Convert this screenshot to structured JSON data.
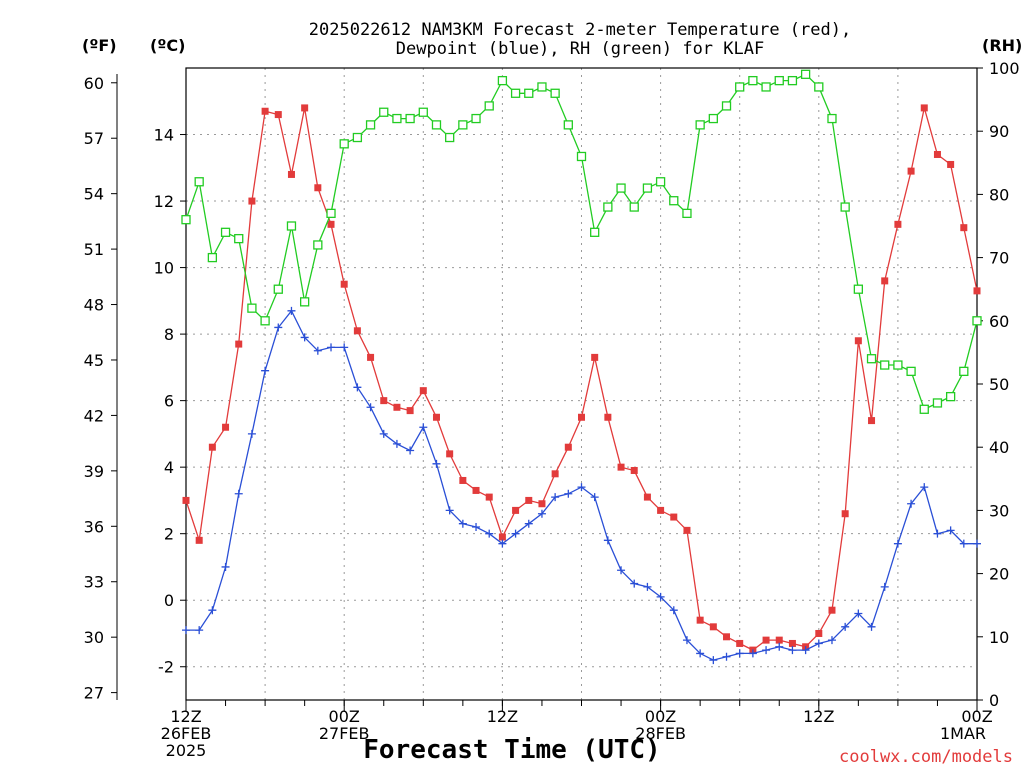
{
  "chart_data": {
    "type": "line",
    "title": [
      "2025022612 NAM3KM Forecast 2-meter Temperature (red),",
      "Dewpoint (blue), RH (green) for KLAF"
    ],
    "xlabel": "Forecast Time (UTC)",
    "credit": "coolwx.com/models",
    "units": {
      "left_f": "(ºF)",
      "left_c": "(ºC)",
      "right": "(RH)"
    },
    "x_range_hours": [
      0,
      60
    ],
    "y_c_range": [
      -3,
      16
    ],
    "y_f_range": [
      26.6,
      60.8
    ],
    "rh_range": [
      0,
      100
    ],
    "grid": true,
    "c_ticks": [
      -2,
      0,
      2,
      4,
      6,
      8,
      10,
      12,
      14
    ],
    "f_ticks": [
      27,
      30,
      33,
      36,
      39,
      42,
      45,
      48,
      51,
      54,
      57,
      60
    ],
    "rh_ticks": [
      0,
      10,
      20,
      30,
      40,
      50,
      60,
      70,
      80,
      90,
      100
    ],
    "x_ticks": [
      {
        "h": 0,
        "lines": [
          "12Z",
          "26FEB",
          "2025"
        ]
      },
      {
        "h": 12,
        "lines": [
          "00Z",
          "27FEB"
        ]
      },
      {
        "h": 24,
        "lines": [
          "12Z"
        ]
      },
      {
        "h": 36,
        "lines": [
          "00Z",
          "28FEB"
        ]
      },
      {
        "h": 48,
        "lines": [
          "12Z"
        ]
      },
      {
        "h": 60,
        "lines": [
          "00Z",
          "1MAR"
        ]
      }
    ],
    "series": [
      {
        "name": "Temperature",
        "color": "#e23b3b",
        "marker": "filled-square",
        "axis": "c",
        "values": [
          3.0,
          1.8,
          4.6,
          5.2,
          7.7,
          12.0,
          14.7,
          14.6,
          12.8,
          14.8,
          12.4,
          11.3,
          9.5,
          8.1,
          7.3,
          6.0,
          5.8,
          5.7,
          6.3,
          5.5,
          4.4,
          3.6,
          3.3,
          3.1,
          1.9,
          2.7,
          3.0,
          2.9,
          3.8,
          4.6,
          5.5,
          7.3,
          5.5,
          4.0,
          3.9,
          3.1,
          2.7,
          2.5,
          2.1,
          -0.6,
          -0.8,
          -1.1,
          -1.3,
          -1.5,
          -1.2,
          -1.2,
          -1.3,
          -1.4,
          -1.0,
          -0.3,
          2.6,
          7.8,
          5.4,
          9.6,
          11.3,
          12.9,
          14.8,
          13.4,
          13.1,
          11.2,
          9.3
        ]
      },
      {
        "name": "Dewpoint",
        "color": "#2a4fd6",
        "marker": "plus",
        "axis": "c",
        "values": [
          -0.9,
          -0.9,
          -0.3,
          1.0,
          3.2,
          5.0,
          6.9,
          8.2,
          8.7,
          7.9,
          7.5,
          7.6,
          7.6,
          6.4,
          5.8,
          5.0,
          4.7,
          4.5,
          5.2,
          4.1,
          2.7,
          2.3,
          2.2,
          2.0,
          1.7,
          2.0,
          2.3,
          2.6,
          3.1,
          3.2,
          3.4,
          3.1,
          1.8,
          0.9,
          0.5,
          0.4,
          0.1,
          -0.3,
          -1.2,
          -1.6,
          -1.8,
          -1.7,
          -1.6,
          -1.6,
          -1.5,
          -1.4,
          -1.5,
          -1.5,
          -1.3,
          -1.2,
          -0.8,
          -0.4,
          -0.8,
          0.4,
          1.7,
          2.9,
          3.4,
          2.0,
          2.1,
          1.7,
          1.7
        ]
      },
      {
        "name": "RH",
        "color": "#22cc22",
        "marker": "open-square",
        "axis": "rh",
        "values": [
          76,
          82,
          70,
          74,
          73,
          62,
          60,
          65,
          75,
          63,
          72,
          77,
          88,
          89,
          91,
          93,
          92,
          92,
          93,
          91,
          89,
          91,
          92,
          94,
          98,
          96,
          96,
          97,
          96,
          91,
          86,
          74,
          78,
          81,
          78,
          81,
          82,
          79,
          77,
          91,
          92,
          94,
          97,
          98,
          97,
          98,
          98,
          99,
          97,
          92,
          78,
          65,
          54,
          53,
          53,
          52,
          46,
          47,
          48,
          52,
          60
        ]
      }
    ]
  }
}
